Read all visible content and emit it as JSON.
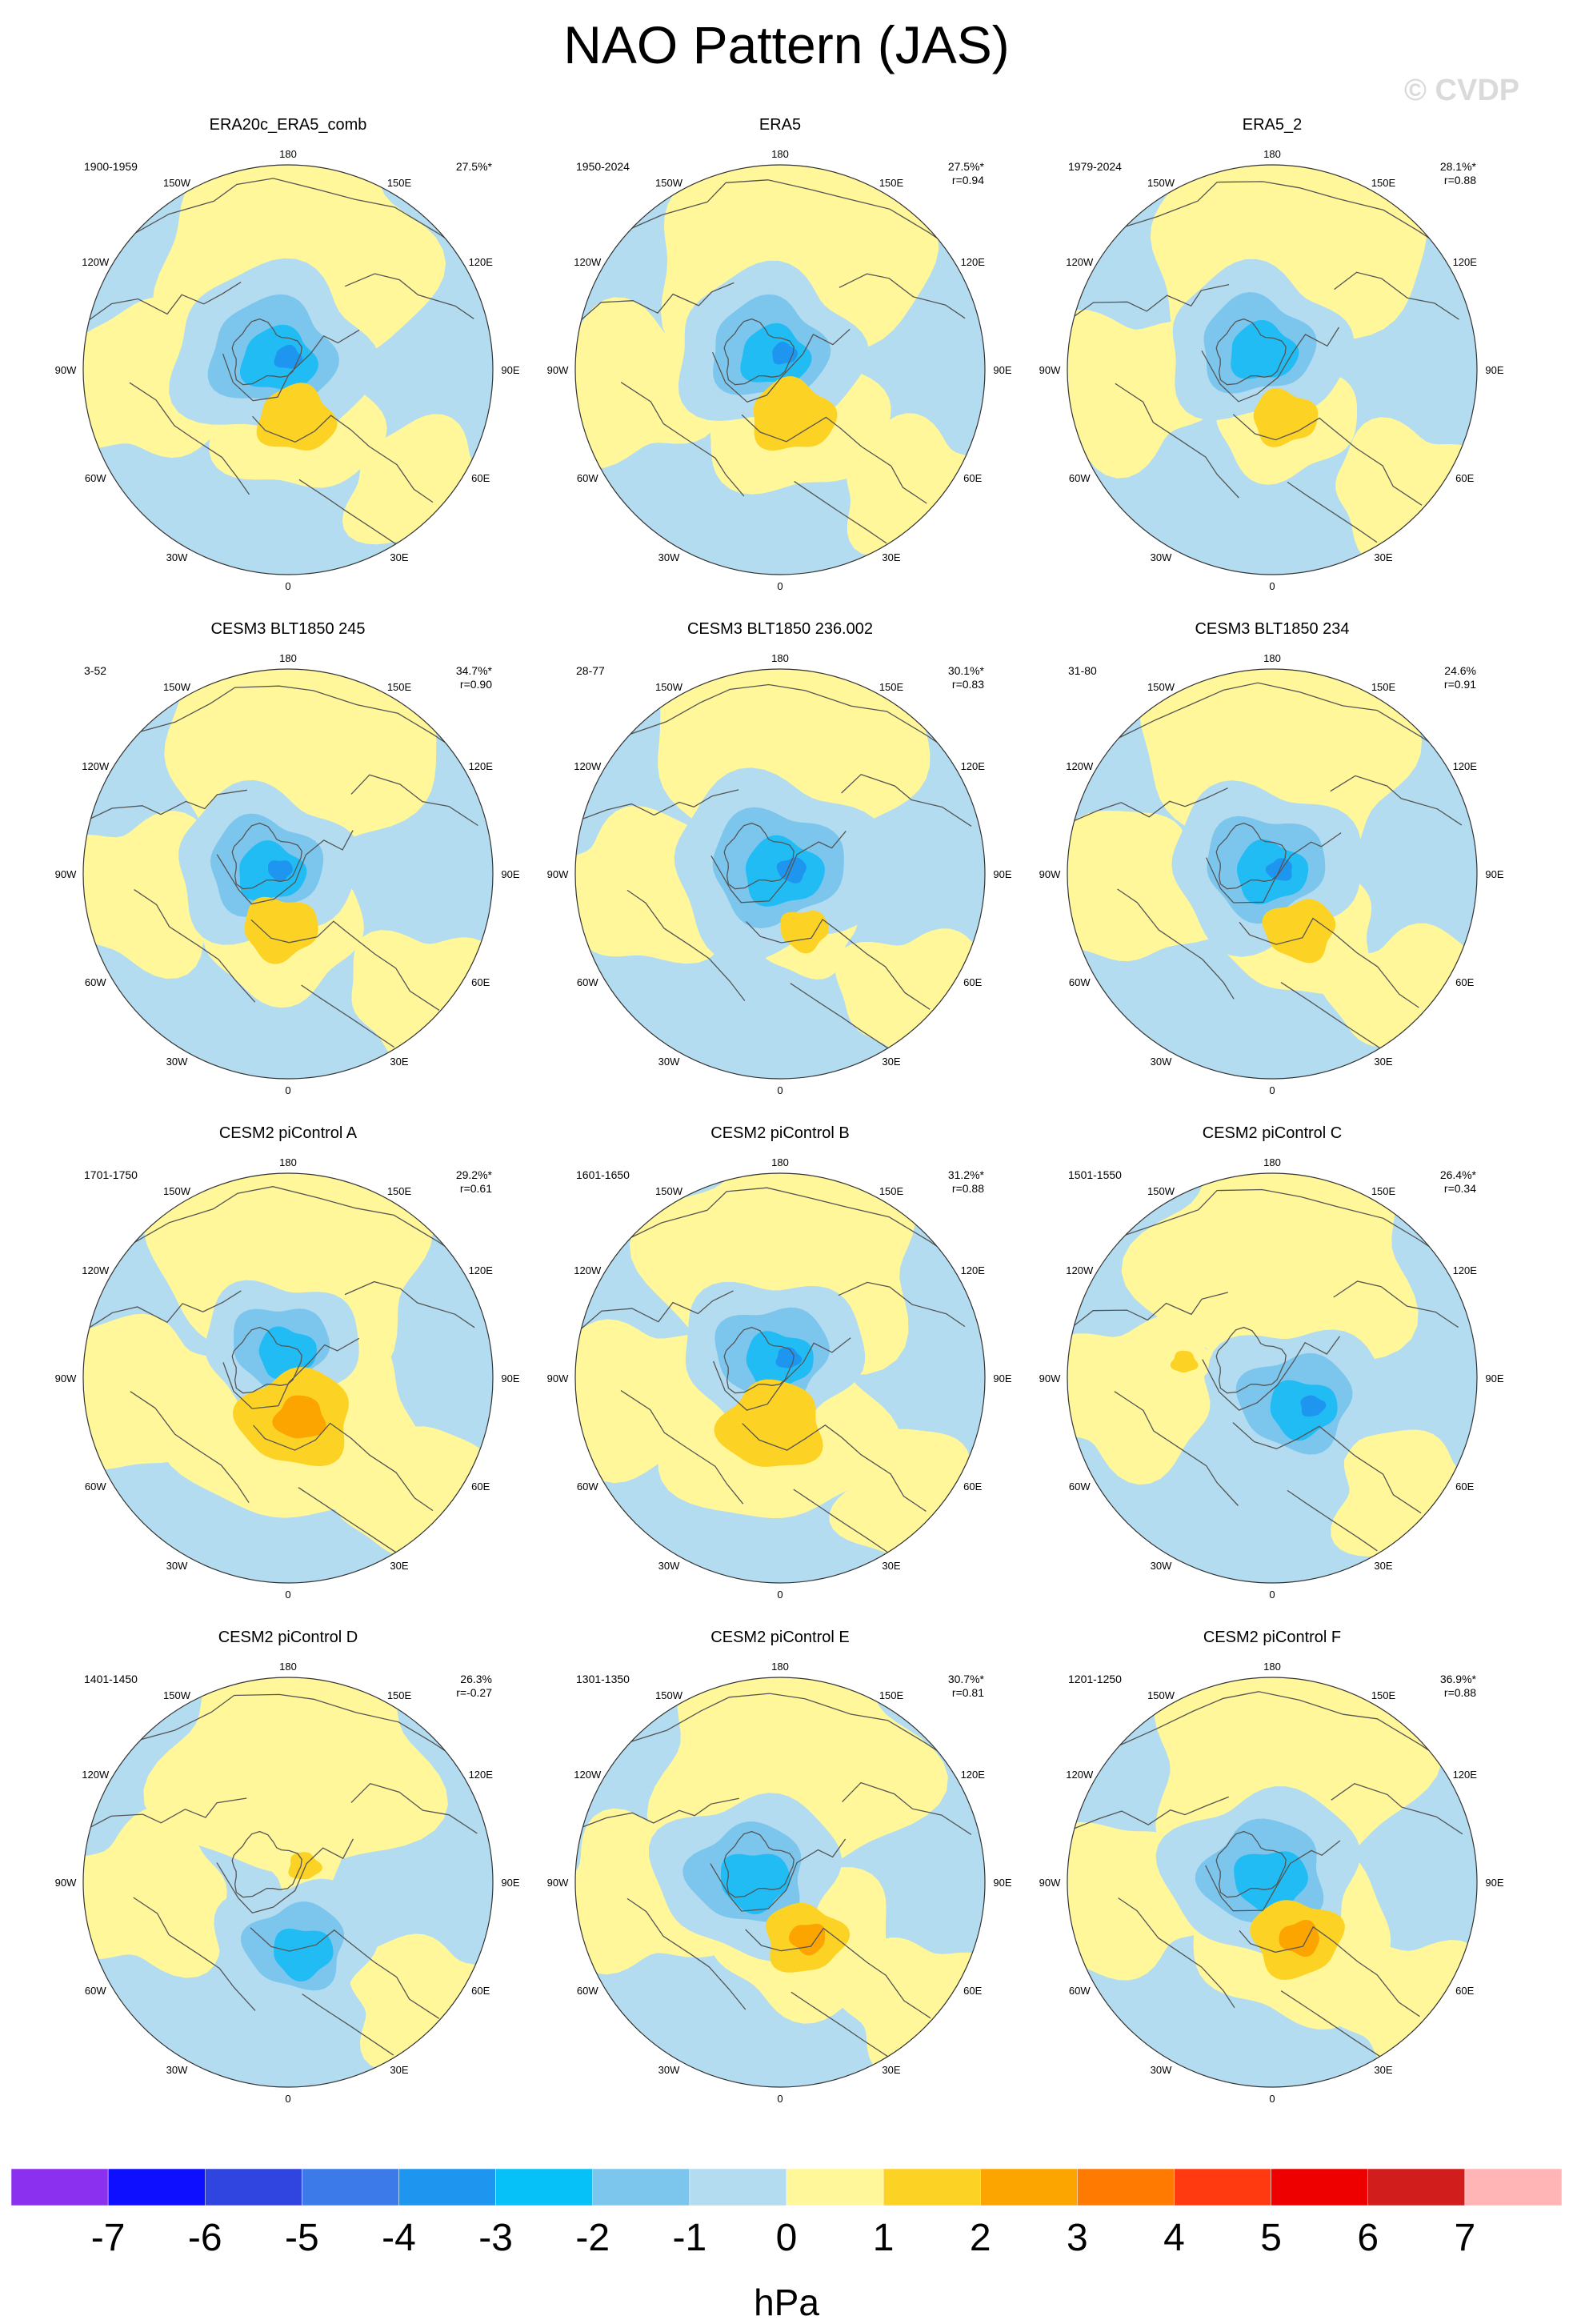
{
  "title": "NAO Pattern (JAS)",
  "watermark": "© CVDP",
  "colors": {
    "ocean_ring": "#b3dcf0",
    "neg1": "#b3dcf0",
    "neg2": "#7cc6ee",
    "neg3": "#22bcf4",
    "neg4": "#1e96f0",
    "pos0": "#fff79a",
    "pos1": "#fcd225",
    "pos2": "#fca400",
    "coast": "#555555"
  },
  "longitude_labels": [
    "180",
    "150E",
    "120E",
    "90E",
    "60E",
    "30E",
    "0",
    "30W",
    "60W",
    "90W",
    "120W",
    "150W"
  ],
  "panels": [
    {
      "title": "ERA20c_ERA5_comb",
      "period": "1900-1959",
      "pct": "27.5%*",
      "r": ""
    },
    {
      "title": "ERA5",
      "period": "1950-2024",
      "pct": "27.5%*",
      "r": "r=0.94"
    },
    {
      "title": "ERA5_2",
      "period": "1979-2024",
      "pct": "28.1%*",
      "r": "r=0.88"
    },
    {
      "title": "CESM3 BLT1850 245",
      "period": "3-52",
      "pct": "34.7%*",
      "r": "r=0.90"
    },
    {
      "title": "CESM3 BLT1850 236.002",
      "period": "28-77",
      "pct": "30.1%*",
      "r": "r=0.83"
    },
    {
      "title": "CESM3 BLT1850 234",
      "period": "31-80",
      "pct": "24.6%",
      "r": "r=0.91"
    },
    {
      "title": "CESM2 piControl A",
      "period": "1701-1750",
      "pct": "29.2%*",
      "r": "r=0.61"
    },
    {
      "title": "CESM2 piControl B",
      "period": "1601-1650",
      "pct": "31.2%*",
      "r": "r=0.88"
    },
    {
      "title": "CESM2 piControl C",
      "period": "1501-1550",
      "pct": "26.4%*",
      "r": "r=0.34"
    },
    {
      "title": "CESM2 piControl D",
      "period": "1401-1450",
      "pct": "26.3%",
      "r": "r=-0.27"
    },
    {
      "title": "CESM2 piControl E",
      "period": "1301-1350",
      "pct": "30.7%*",
      "r": "r=0.81"
    },
    {
      "title": "CESM2 piControl F",
      "period": "1201-1250",
      "pct": "36.9%*",
      "r": "r=0.88"
    }
  ],
  "colorbar": {
    "colors": [
      "#8c30f0",
      "#0f0fff",
      "#3045e0",
      "#3c7aea",
      "#1e96f0",
      "#06c0f8",
      "#7cc6ee",
      "#b3dcf0",
      "#fff79a",
      "#fcd225",
      "#fca400",
      "#ff7a00",
      "#ff3a10",
      "#ee0000",
      "#d21d1d",
      "#ffb5b5"
    ],
    "labels": [
      "-7",
      "-6",
      "-5",
      "-4",
      "-3",
      "-2",
      "-1",
      "0",
      "1",
      "2",
      "3",
      "4",
      "5",
      "6",
      "7"
    ],
    "unit": "hPa"
  }
}
